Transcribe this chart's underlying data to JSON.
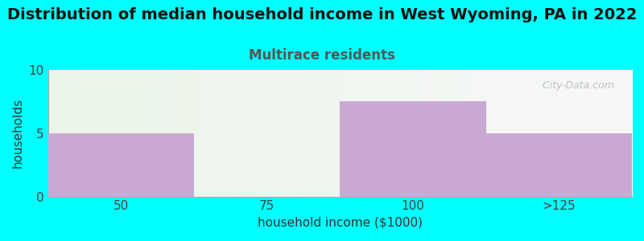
{
  "title": "Distribution of median household income in West Wyoming, PA in 2022",
  "subtitle": "Multirace residents",
  "xlabel": "household income ($1000)",
  "ylabel": "households",
  "categories": [
    "50",
    "75",
    "100",
    ">125"
  ],
  "values": [
    5,
    0,
    7.5,
    5
  ],
  "bar_colors": [
    "#c9a8d4",
    "#dff0d8",
    "#c9a8d4",
    "#c9a8d4"
  ],
  "ylim": [
    0,
    10
  ],
  "yticks": [
    0,
    5,
    10
  ],
  "background_color": "#00ffff",
  "title_fontsize": 14,
  "subtitle_fontsize": 12,
  "subtitle_color": "#555555",
  "watermark": "  City-Data.com"
}
